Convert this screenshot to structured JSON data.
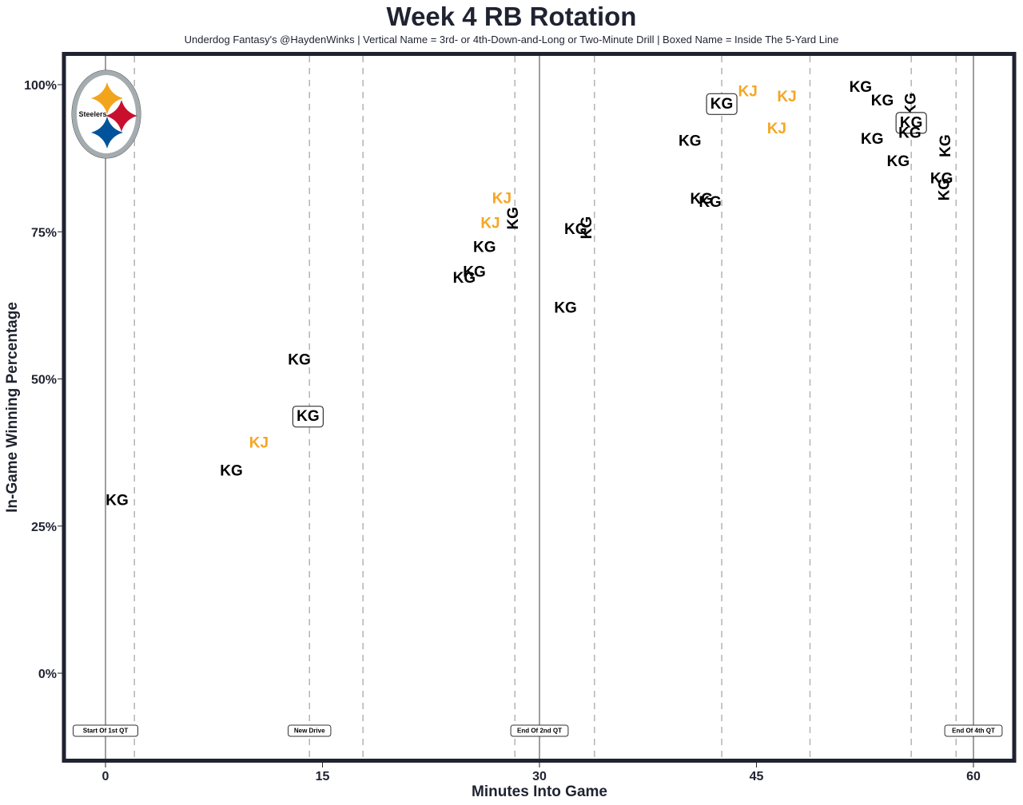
{
  "title": "Week 4 RB Rotation",
  "subtitle": "Underdog Fantasy's @HaydenWinks | Vertical Name = 3rd- or 4th-Down-and-Long or Two-Minute Drill | Boxed Name = Inside The 5-Yard Line",
  "logo": {
    "team": "Steelers",
    "colors": {
      "gold": "#F2A51C",
      "red": "#C8102E",
      "blue": "#00539B",
      "ring": "#A5ACAF"
    }
  },
  "chart_data": {
    "type": "scatter",
    "title": "Week 4 RB Rotation",
    "xlabel": "Minutes Into Game",
    "ylabel": "In-Game Winning Percentage",
    "xlim": [
      -2.8,
      62.8
    ],
    "ylim": [
      -15,
      105
    ],
    "xticks": [
      0,
      15,
      30,
      45,
      60
    ],
    "xtick_labels": [
      "0",
      "15",
      "30",
      "45",
      "60"
    ],
    "yticks": [
      0,
      25,
      50,
      75,
      100
    ],
    "ytick_labels": [
      "0%",
      "25%",
      "50%",
      "75%",
      "100%"
    ],
    "grid": false,
    "quarter_lines": [
      0,
      30,
      60
    ],
    "drive_lines": [
      2.0,
      14.1,
      17.8,
      28.3,
      33.8,
      42.6,
      48.7,
      55.7,
      58.8
    ],
    "annotations": [
      {
        "x": 0,
        "text": "Start Of 1st QT"
      },
      {
        "x": 14.1,
        "text": "New Drive"
      },
      {
        "x": 30,
        "text": "End Of 2nd QT"
      },
      {
        "x": 60,
        "text": "End Of 4th QT"
      }
    ],
    "players": {
      "KG": {
        "color": "#000000"
      },
      "KJ": {
        "color": "#F5A623"
      }
    },
    "points": [
      {
        "player": "KG",
        "x": 0.8,
        "y": 29.3,
        "vertical": false,
        "boxed": false
      },
      {
        "player": "KG",
        "x": 8.7,
        "y": 34.3,
        "vertical": false,
        "boxed": false
      },
      {
        "player": "KJ",
        "x": 10.6,
        "y": 39.1,
        "vertical": false,
        "boxed": false
      },
      {
        "player": "KG",
        "x": 14.0,
        "y": 43.6,
        "vertical": false,
        "boxed": true
      },
      {
        "player": "KG",
        "x": 13.4,
        "y": 53.2,
        "vertical": false,
        "boxed": false
      },
      {
        "player": "KG",
        "x": 24.8,
        "y": 67.1,
        "vertical": false,
        "boxed": false
      },
      {
        "player": "KG",
        "x": 25.5,
        "y": 68.1,
        "vertical": false,
        "boxed": false
      },
      {
        "player": "KG",
        "x": 26.2,
        "y": 72.3,
        "vertical": false,
        "boxed": false
      },
      {
        "player": "KJ",
        "x": 26.6,
        "y": 76.4,
        "vertical": false,
        "boxed": false
      },
      {
        "player": "KJ",
        "x": 27.4,
        "y": 80.6,
        "vertical": false,
        "boxed": false
      },
      {
        "player": "KG",
        "x": 28.2,
        "y": 77.3,
        "vertical": true,
        "boxed": false
      },
      {
        "player": "KG",
        "x": 31.8,
        "y": 62.0,
        "vertical": false,
        "boxed": false
      },
      {
        "player": "KG",
        "x": 32.5,
        "y": 75.4,
        "vertical": false,
        "boxed": false
      },
      {
        "player": "KG",
        "x": 33.3,
        "y": 75.7,
        "vertical": true,
        "boxed": false
      },
      {
        "player": "KG",
        "x": 40.4,
        "y": 90.4,
        "vertical": false,
        "boxed": false
      },
      {
        "player": "KG",
        "x": 41.2,
        "y": 80.5,
        "vertical": false,
        "boxed": false
      },
      {
        "player": "KG",
        "x": 41.8,
        "y": 80.0,
        "vertical": false,
        "boxed": false
      },
      {
        "player": "KG",
        "x": 42.6,
        "y": 96.7,
        "vertical": false,
        "boxed": true
      },
      {
        "player": "KJ",
        "x": 44.4,
        "y": 98.8,
        "vertical": false,
        "boxed": false
      },
      {
        "player": "KJ",
        "x": 47.1,
        "y": 97.9,
        "vertical": false,
        "boxed": false
      },
      {
        "player": "KJ",
        "x": 46.4,
        "y": 92.5,
        "vertical": false,
        "boxed": false
      },
      {
        "player": "KG",
        "x": 52.2,
        "y": 99.5,
        "vertical": false,
        "boxed": false
      },
      {
        "player": "KG",
        "x": 53.7,
        "y": 97.2,
        "vertical": false,
        "boxed": false
      },
      {
        "player": "KG",
        "x": 53.0,
        "y": 90.7,
        "vertical": false,
        "boxed": false
      },
      {
        "player": "KG",
        "x": 54.8,
        "y": 86.9,
        "vertical": false,
        "boxed": false
      },
      {
        "player": "KG",
        "x": 55.7,
        "y": 96.7,
        "vertical": true,
        "boxed": false
      },
      {
        "player": "KG",
        "x": 55.7,
        "y": 93.5,
        "vertical": false,
        "boxed": true
      },
      {
        "player": "KG",
        "x": 55.6,
        "y": 91.7,
        "vertical": false,
        "boxed": false
      },
      {
        "player": "KG",
        "x": 58.1,
        "y": 89.6,
        "vertical": true,
        "boxed": false
      },
      {
        "player": "KG",
        "x": 57.8,
        "y": 84.0,
        "vertical": false,
        "boxed": false
      },
      {
        "player": "KG",
        "x": 58.0,
        "y": 82.2,
        "vertical": true,
        "boxed": false
      }
    ]
  }
}
